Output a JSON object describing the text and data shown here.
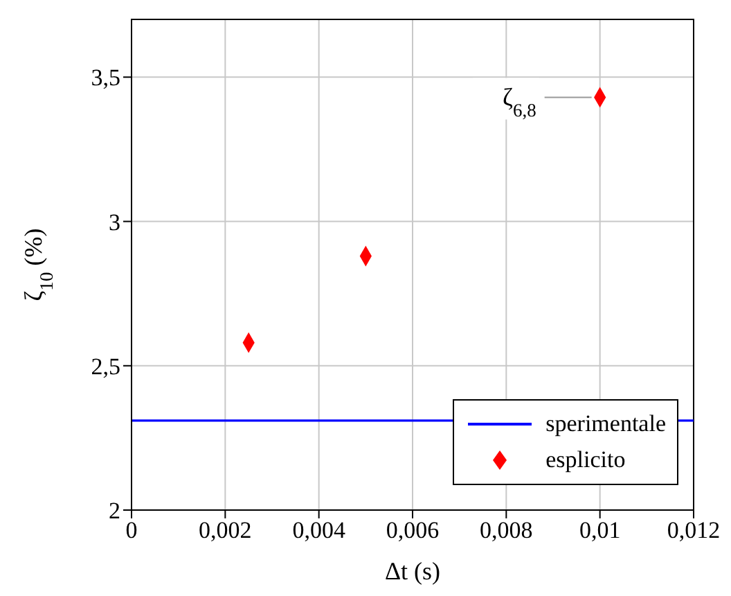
{
  "chart_data": {
    "type": "scatter",
    "xlabel": "Δt (s)",
    "ylabel": "ζ$_{10}$ (%)",
    "xlim": [
      0,
      0.012
    ],
    "xticks": [
      0,
      {
        "value": 0.002,
        "label": "0,002"
      },
      {
        "value": 0.004,
        "label": "0,004"
      },
      {
        "value": 0.006,
        "label": "0,006"
      },
      {
        "value": 0.008,
        "label": "0,008"
      },
      {
        "value": 0.01,
        "label": "0,01"
      },
      {
        "value": 0.012,
        "label": "0,012"
      }
    ],
    "ylim": [
      2,
      3.7
    ],
    "yticks": [
      2,
      {
        "value": 2.5,
        "label": "2,5"
      },
      3,
      {
        "value": 3.5,
        "label": "3,5"
      }
    ],
    "grid": true,
    "legend": "bottom right",
    "series": [
      {
        "name": "sperimentale",
        "type": "line",
        "color": "#0000ff",
        "x": [
          0,
          0.012
        ],
        "values": [
          2.31,
          2.31
        ],
        "marker": "none",
        "line_style": "solid"
      },
      {
        "name": "esplicito",
        "color": "#ff0000",
        "x": [
          0.0025,
          0.005,
          0.01
        ],
        "values": [
          2.58,
          2.88,
          3.43
        ],
        "marker": "diamond"
      }
    ],
    "annotations": [
      {
        "text": "ζ$_{6,8}$",
        "x": 0.01,
        "y": 3.43
      }
    ]
  }
}
